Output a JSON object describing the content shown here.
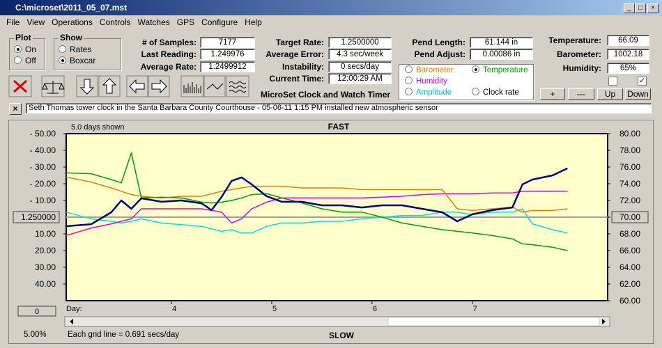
{
  "window": {
    "title": "C:\\microset\\2011_05_07.mst"
  },
  "menu": [
    "File",
    "View",
    "Operations",
    "Controls",
    "Watches",
    "GPS",
    "Configure",
    "Help"
  ],
  "plot": {
    "title": "Plot",
    "options": [
      "On",
      "Off"
    ]
  },
  "show": {
    "title": "Show",
    "options": [
      "Rates",
      "Boxcar"
    ]
  },
  "fields": [
    {
      "label": "# of Samples:",
      "value": "7177"
    },
    {
      "label": "Last Reading:",
      "value": "1.249976"
    },
    {
      "label": "Average Rate:",
      "value": "1.2499912"
    },
    {
      "label": "Target Rate:",
      "value": "1.2500000"
    },
    {
      "label": "Average Error:",
      "value": "4.3 sec/week"
    },
    {
      "label": "Instability:",
      "value": "0 secs/day"
    },
    {
      "label": "Current Time:",
      "value": "12:00:29 AM"
    },
    {
      "label": "Pend Length:",
      "value": "61.144 in"
    },
    {
      "label": "Pend Adjust:",
      "value": "0.00086 in"
    },
    {
      "label": "Temperature:",
      "value": "66.09"
    },
    {
      "label": "Barometer:",
      "value": "1002.18"
    },
    {
      "label": "Humidity:",
      "value": "65%"
    }
  ],
  "series_selector": [
    "Barometer",
    "Temperature",
    "Humidity",
    "Amplitude",
    "Clock rate"
  ],
  "buttons": [
    "+",
    "—",
    "Up",
    "Down"
  ],
  "app_name": "MicroSet Clock and Watch Timer",
  "note": "Seth Thomas tower clock in the Santa Barbara County Courthouse -  05-06-11 1:15 PM installed new atmospheric sensor",
  "chart_data": {
    "type": "line",
    "top_label": "FAST",
    "bottom_label": "SLOW",
    "days_shown": "5.0 days shown",
    "x_label": "Day:",
    "min_button": "0",
    "xlim": [
      2.95,
      8.35
    ],
    "xticks": [
      4,
      5,
      6,
      7
    ],
    "ylim": [
      -50,
      50
    ],
    "yticks": [
      {
        "value": 50,
        "label": "- 50.00"
      },
      {
        "value": 40,
        "label": "- 40.00"
      },
      {
        "value": 30,
        "label": "- 30.00"
      },
      {
        "value": 20,
        "label": "- 20.00"
      },
      {
        "value": 10,
        "label": "- 10.00"
      },
      {
        "value": 0,
        "label": "1.250000"
      },
      {
        "value": -10,
        "label": "10.00"
      },
      {
        "value": -20,
        "label": "20.00"
      },
      {
        "value": -30,
        "label": "30.00"
      },
      {
        "value": -40,
        "label": "40.00"
      }
    ],
    "y2lim": [
      60,
      80
    ],
    "y2ticks": [
      {
        "value": 80,
        "label": "80.00"
      },
      {
        "value": 78,
        "label": "78.00"
      },
      {
        "value": 76,
        "label": "76.00"
      },
      {
        "value": 74,
        "label": "74.00"
      },
      {
        "value": 72,
        "label": "72.00"
      },
      {
        "value": 70,
        "label": "70.00"
      },
      {
        "value": 68,
        "label": "68.00"
      },
      {
        "value": 66,
        "label": "66.00"
      },
      {
        "value": 64,
        "label": "64.00"
      },
      {
        "value": 62,
        "label": "62.00"
      },
      {
        "value": 60,
        "label": "60.00"
      }
    ],
    "x": [
      2.95,
      3.2,
      3.4,
      3.5,
      3.6,
      3.7,
      3.9,
      4.1,
      4.3,
      4.4,
      4.5,
      4.6,
      4.7,
      4.8,
      4.95,
      5.1,
      5.3,
      5.5,
      5.7,
      5.9,
      6.1,
      6.3,
      6.5,
      6.7,
      6.85,
      7.0,
      7.2,
      7.4,
      7.5,
      7.6,
      7.8,
      7.95
    ],
    "series": [
      {
        "name": "Clock rate",
        "color": "#000080",
        "values": [
          -5.4,
          -4.2,
          2.9,
          10,
          5,
          11.3,
          9.2,
          10,
          8.3,
          4.2,
          12.1,
          21.7,
          23.8,
          19.6,
          12.5,
          9.2,
          9.2,
          7.1,
          7.1,
          5.8,
          7.1,
          7.1,
          5,
          2.9,
          -2.5,
          1.7,
          4.2,
          5.8,
          19.6,
          22.5,
          25,
          29.2
        ]
      },
      {
        "name": "Temperature",
        "color": "#00a000",
        "axis": "y2",
        "values": [
          75.3,
          75.2,
          74.5,
          74.1,
          77.7,
          72.3,
          72.4,
          72.3,
          71.8,
          71.7,
          71.8,
          72,
          72.3,
          72.7,
          72.8,
          72.3,
          71.7,
          71,
          70.6,
          70.6,
          70,
          69.3,
          68.9,
          68.5,
          68.3,
          68.1,
          67.8,
          67.4,
          66.8,
          66.7,
          66.4,
          66
        ]
      },
      {
        "name": "Barometer",
        "color": "#e08000",
        "axis": "y2",
        "values": [
          74.8,
          74.2,
          73.5,
          73.1,
          72.7,
          72.5,
          72.3,
          72.5,
          72.5,
          72.8,
          73.1,
          73.3,
          73.5,
          73.7,
          73.7,
          73.7,
          73.5,
          73.5,
          73.5,
          73.3,
          73.3,
          73.3,
          73.3,
          73.3,
          71,
          70.8,
          71,
          71.2,
          70.6,
          70.8,
          70.8,
          71
        ]
      },
      {
        "name": "Humidity",
        "color": "#e000e0",
        "axis": "y2",
        "values": [
          67.8,
          68.7,
          69.2,
          69.5,
          69.8,
          71,
          71,
          71,
          71,
          70.8,
          70.6,
          69.3,
          69.8,
          71,
          71.8,
          72.3,
          72.3,
          72.3,
          72.3,
          72.3,
          72.4,
          72.5,
          72.7,
          72.8,
          72.8,
          72.8,
          72.9,
          72.9,
          73.1,
          73.1,
          73.1,
          73.1
        ]
      },
      {
        "name": "Amplitude",
        "color": "#00e0e0",
        "axis": "y2",
        "values": [
          70.6,
          69.8,
          69.5,
          69.3,
          69.5,
          69.8,
          69.3,
          69.1,
          68.9,
          68.6,
          68.3,
          68.5,
          68.1,
          68.1,
          68.9,
          69.3,
          69.3,
          69.5,
          69.5,
          69.8,
          70,
          70.2,
          70.2,
          70.6,
          70.6,
          70.3,
          70.6,
          70.6,
          71,
          69.2,
          68.5,
          68.1
        ]
      }
    ]
  },
  "status": {
    "zoom": "5.00%",
    "grid_info": "Each grid line = 0.691 secs/day"
  }
}
